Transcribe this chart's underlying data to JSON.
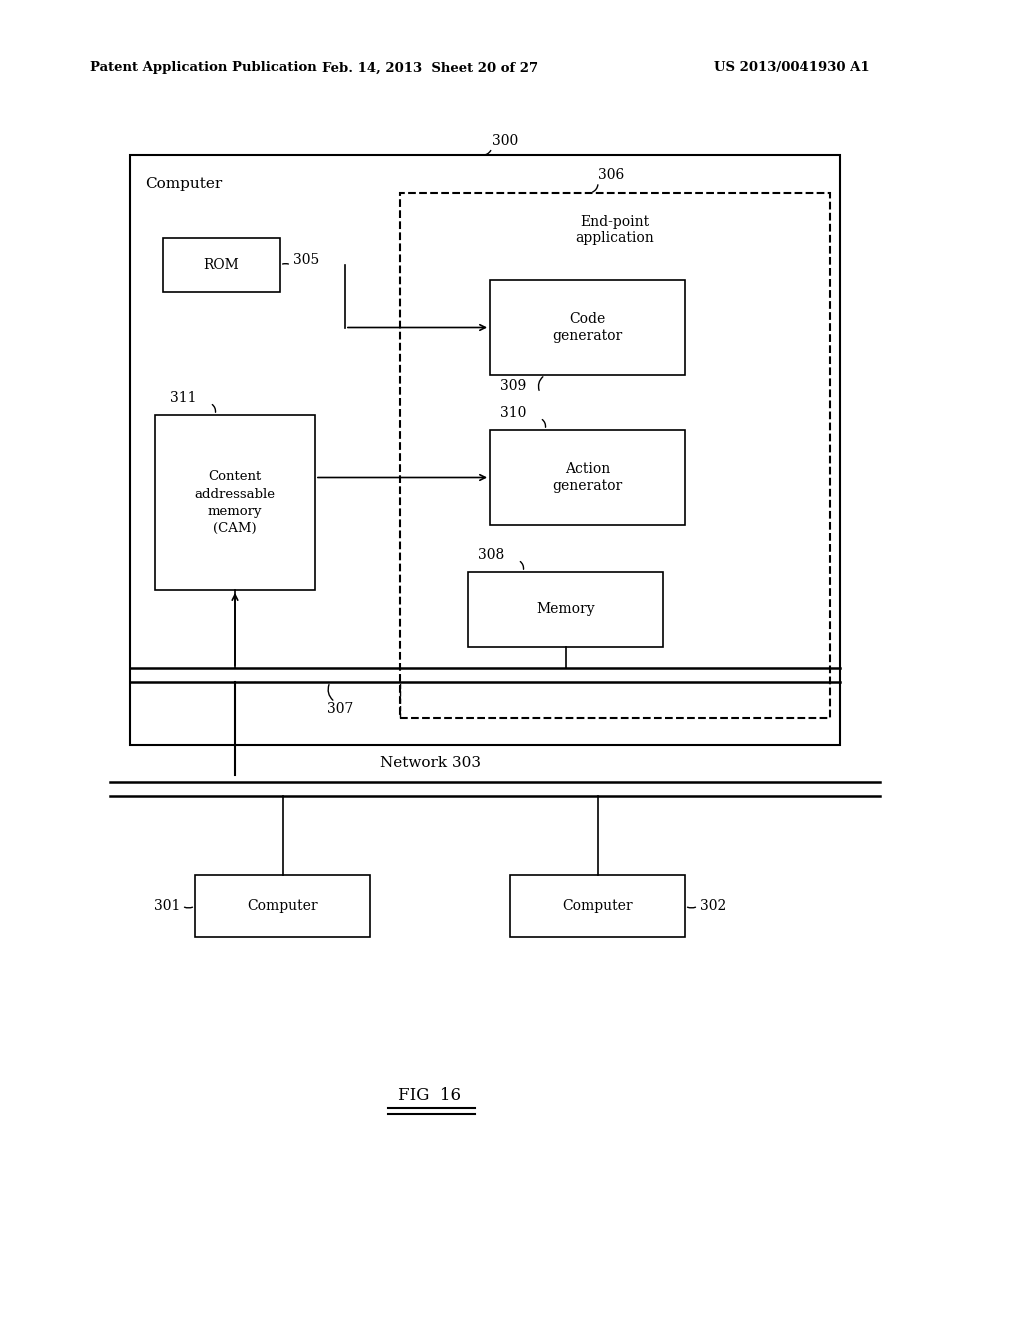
{
  "bg_color": "#ffffff",
  "header_left": "Patent Application Publication",
  "header_mid": "Feb. 14, 2013  Sheet 20 of 27",
  "header_right": "US 2013/0041930 A1",
  "fig_label": "FIG  16",
  "outer_box_label": "Computer",
  "outer_box_label_ref": "300",
  "inner_dashed_box_label": "End-point\napplication",
  "inner_dashed_box_ref": "306",
  "rom_label": "ROM",
  "rom_ref": "305",
  "cam_label": "Content\naddressable\nmemory\n(CAM)",
  "cam_ref": "311",
  "code_gen_label": "Code\ngenerator",
  "code_gen_ref": "309",
  "action_gen_label": "Action\ngenerator",
  "action_gen_ref": "310",
  "memory_label": "Memory",
  "memory_ref": "308",
  "bus_ref": "307",
  "network_label": "Network 303",
  "comp1_label": "Computer",
  "comp1_ref": "301",
  "comp2_label": "Computer",
  "comp2_ref": "302"
}
